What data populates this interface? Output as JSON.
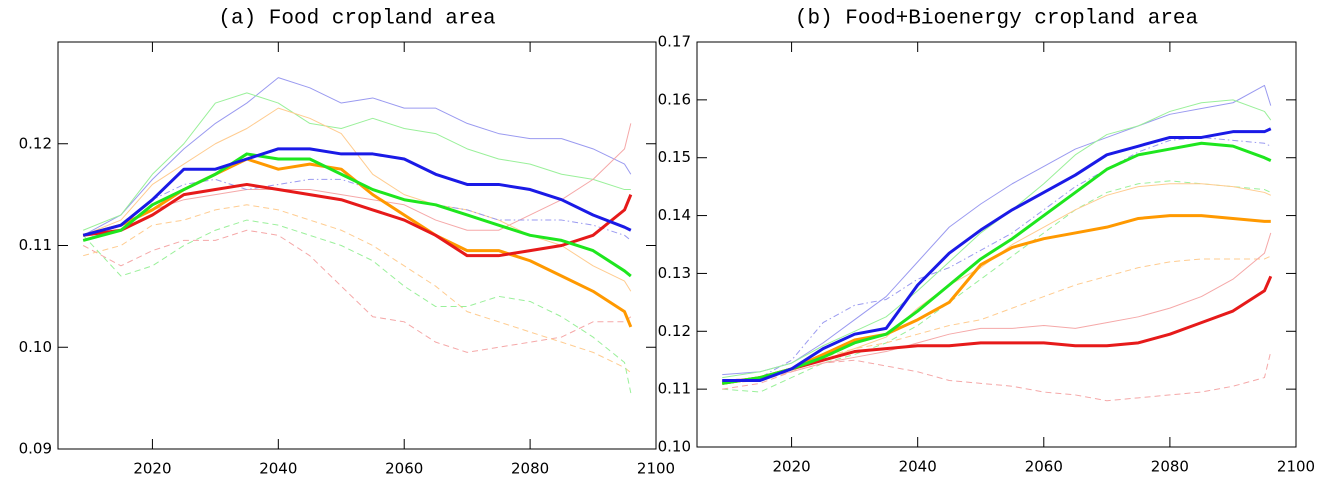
{
  "chart_data": [
    {
      "type": "line",
      "title": "(a) Food cropland area",
      "x": [
        2009,
        2015,
        2020,
        2025,
        2030,
        2035,
        2040,
        2045,
        2050,
        2055,
        2060,
        2065,
        2070,
        2075,
        2080,
        2085,
        2090,
        2095,
        2096
      ],
      "xlim": [
        2005,
        2100
      ],
      "xticks": [
        2020,
        2040,
        2060,
        2080,
        2100
      ],
      "ylim": [
        0.09,
        0.13
      ],
      "yticks": [
        0.09,
        {
          "value": 0.1,
          "label": "0.10"
        },
        0.11,
        0.12
      ],
      "series": [
        {
          "color": "#9a9af0",
          "dash": "solid",
          "linewidth": 1,
          "values": [
            0.111,
            0.113,
            0.1165,
            0.1195,
            0.122,
            0.124,
            0.1265,
            0.1255,
            0.124,
            0.1245,
            0.1235,
            0.1235,
            0.122,
            0.121,
            0.1205,
            0.1205,
            0.1195,
            0.118,
            0.117
          ]
        },
        {
          "color": "#9af09a",
          "dash": "solid",
          "linewidth": 1,
          "values": [
            0.1115,
            0.113,
            0.117,
            0.12,
            0.124,
            0.125,
            0.124,
            0.122,
            0.1215,
            0.1225,
            0.1215,
            0.121,
            0.1195,
            0.1185,
            0.118,
            0.117,
            0.1165,
            0.1155,
            0.1155
          ]
        },
        {
          "color": "#f5a8a8",
          "dash": "dashed",
          "linewidth": 1,
          "values": [
            0.11,
            0.108,
            0.1095,
            0.1105,
            0.1105,
            0.1115,
            0.111,
            0.109,
            0.106,
            0.103,
            0.1025,
            0.1005,
            0.0995,
            0.1,
            0.1005,
            0.101,
            0.1025,
            0.1025,
            0.103
          ]
        },
        {
          "color": "#ffcc90",
          "dash": "dashed",
          "linewidth": 1,
          "values": [
            0.109,
            0.11,
            0.112,
            0.1125,
            0.1135,
            0.114,
            0.1135,
            0.1125,
            0.1115,
            0.11,
            0.108,
            0.106,
            0.1035,
            0.1025,
            0.1015,
            0.1005,
            0.0995,
            0.098,
            0.0975
          ]
        },
        {
          "color": "#9af09a",
          "dash": "dashed",
          "linewidth": 1,
          "values": [
            0.111,
            0.107,
            0.108,
            0.11,
            0.1115,
            0.1125,
            0.112,
            0.111,
            0.11,
            0.1085,
            0.106,
            0.104,
            0.104,
            0.105,
            0.1045,
            0.103,
            0.101,
            0.0985,
            0.0955
          ]
        },
        {
          "color": "#f5a8a8",
          "dash": "solid",
          "linewidth": 1,
          "values": [
            0.111,
            0.112,
            0.1135,
            0.1145,
            0.115,
            0.1155,
            0.1155,
            0.1155,
            0.115,
            0.1145,
            0.114,
            0.1125,
            0.1115,
            0.1115,
            0.113,
            0.1145,
            0.1165,
            0.1195,
            0.122
          ]
        },
        {
          "color": "#ffcc90",
          "dash": "solid",
          "linewidth": 1,
          "values": [
            0.111,
            0.1125,
            0.116,
            0.118,
            0.12,
            0.1215,
            0.1235,
            0.1225,
            0.121,
            0.117,
            0.115,
            0.114,
            0.1135,
            0.1125,
            0.111,
            0.11,
            0.108,
            0.1065,
            0.1055
          ]
        },
        {
          "color": "#9a9af0",
          "dash": "dashdot",
          "linewidth": 1,
          "values": [
            0.1105,
            0.112,
            0.1145,
            0.116,
            0.1165,
            0.1155,
            0.116,
            0.1165,
            0.1165,
            0.1155,
            0.1145,
            0.114,
            0.1135,
            0.1125,
            0.1125,
            0.1125,
            0.112,
            0.111,
            0.1105
          ]
        },
        {
          "color": "#ff9900",
          "dash": "solid",
          "linewidth": 3,
          "values": [
            0.111,
            0.112,
            0.1135,
            0.1155,
            0.117,
            0.1185,
            0.1175,
            0.118,
            0.1175,
            0.115,
            0.113,
            0.111,
            0.1095,
            0.1095,
            0.1085,
            0.107,
            0.1055,
            0.1035,
            0.102
          ]
        },
        {
          "color": "#e61a1a",
          "dash": "solid",
          "linewidth": 3,
          "values": [
            0.111,
            0.1115,
            0.113,
            0.115,
            0.1155,
            0.116,
            0.1155,
            0.115,
            0.1145,
            0.1135,
            0.1125,
            0.111,
            0.109,
            0.109,
            0.1095,
            0.11,
            0.111,
            0.1135,
            0.115
          ]
        },
        {
          "color": "#1ee61e",
          "dash": "solid",
          "linewidth": 3,
          "values": [
            0.1105,
            0.1115,
            0.114,
            0.1155,
            0.117,
            0.119,
            0.1185,
            0.1185,
            0.117,
            0.1155,
            0.1145,
            0.114,
            0.113,
            0.112,
            0.111,
            0.1105,
            0.1095,
            0.1075,
            0.107
          ]
        },
        {
          "color": "#1a1ae6",
          "dash": "solid",
          "linewidth": 3,
          "values": [
            0.111,
            0.112,
            0.1145,
            0.1175,
            0.1175,
            0.1185,
            0.1195,
            0.1195,
            0.119,
            0.119,
            0.1185,
            0.117,
            0.116,
            0.116,
            0.1155,
            0.1145,
            0.113,
            0.1118,
            0.1115
          ]
        }
      ]
    },
    {
      "type": "line",
      "title": "(b) Food+Bioenergy cropland area",
      "x": [
        2009,
        2015,
        2020,
        2025,
        2030,
        2035,
        2040,
        2045,
        2050,
        2055,
        2060,
        2065,
        2070,
        2075,
        2080,
        2085,
        2090,
        2095,
        2096
      ],
      "xlim": [
        2005,
        2100
      ],
      "xticks": [
        2020,
        2040,
        2060,
        2080,
        2100
      ],
      "ylim": [
        0.1,
        0.17
      ],
      "yticks": [
        {
          "value": 0.1,
          "label": "0.10"
        },
        0.11,
        0.12,
        0.13,
        0.14,
        0.15,
        0.16,
        0.17
      ],
      "series": [
        {
          "color": "#9a9af0",
          "dash": "solid",
          "linewidth": 1,
          "values": [
            0.1125,
            0.113,
            0.1145,
            0.118,
            0.122,
            0.126,
            0.132,
            0.138,
            0.142,
            0.1455,
            0.1485,
            0.1515,
            0.1535,
            0.1555,
            0.1575,
            0.1585,
            0.1595,
            0.1625,
            0.159
          ]
        },
        {
          "color": "#9a9af0",
          "dash": "dashdot",
          "linewidth": 1,
          "values": [
            0.1115,
            0.112,
            0.115,
            0.1215,
            0.1245,
            0.1255,
            0.129,
            0.131,
            0.134,
            0.137,
            0.141,
            0.145,
            0.148,
            0.151,
            0.153,
            0.1535,
            0.153,
            0.1525,
            0.152
          ]
        },
        {
          "color": "#9af09a",
          "dash": "solid",
          "linewidth": 1,
          "values": [
            0.112,
            0.113,
            0.1145,
            0.1175,
            0.12,
            0.1225,
            0.127,
            0.132,
            0.137,
            0.141,
            0.1455,
            0.1505,
            0.154,
            0.1555,
            0.158,
            0.1595,
            0.16,
            0.158,
            0.1565
          ]
        },
        {
          "color": "#9af09a",
          "dash": "dashed",
          "linewidth": 1,
          "values": [
            0.11,
            0.1095,
            0.112,
            0.1145,
            0.116,
            0.118,
            0.121,
            0.125,
            0.129,
            0.133,
            0.137,
            0.141,
            0.144,
            0.1455,
            0.146,
            0.1455,
            0.145,
            0.1445,
            0.144
          ]
        },
        {
          "color": "#ffcc90",
          "dash": "solid",
          "linewidth": 1,
          "values": [
            0.1115,
            0.112,
            0.1135,
            0.115,
            0.117,
            0.119,
            0.124,
            0.128,
            0.131,
            0.135,
            0.138,
            0.141,
            0.1435,
            0.145,
            0.1455,
            0.1455,
            0.145,
            0.144,
            0.1435
          ]
        },
        {
          "color": "#ffcc90",
          "dash": "dashed",
          "linewidth": 1,
          "values": [
            0.111,
            0.1115,
            0.113,
            0.1155,
            0.117,
            0.118,
            0.1195,
            0.121,
            0.122,
            0.124,
            0.126,
            0.128,
            0.1295,
            0.131,
            0.132,
            0.1325,
            0.1325,
            0.1325,
            0.133
          ]
        },
        {
          "color": "#f5a8a8",
          "dash": "solid",
          "linewidth": 1,
          "values": [
            0.1115,
            0.112,
            0.113,
            0.1145,
            0.1155,
            0.1165,
            0.118,
            0.1195,
            0.1205,
            0.1205,
            0.121,
            0.1205,
            0.1215,
            0.1225,
            0.124,
            0.126,
            0.129,
            0.1335,
            0.137
          ]
        },
        {
          "color": "#f5a8a8",
          "dash": "dashed",
          "linewidth": 1,
          "values": [
            0.11,
            0.111,
            0.113,
            0.1145,
            0.115,
            0.114,
            0.113,
            0.1115,
            0.111,
            0.1105,
            0.1095,
            0.109,
            0.108,
            0.1085,
            0.109,
            0.1095,
            0.1105,
            0.112,
            0.1165
          ]
        },
        {
          "color": "#e61a1a",
          "dash": "solid",
          "linewidth": 3,
          "values": [
            0.111,
            0.112,
            0.1135,
            0.115,
            0.1165,
            0.117,
            0.1175,
            0.1175,
            0.118,
            0.118,
            0.118,
            0.1175,
            0.1175,
            0.118,
            0.1195,
            0.1215,
            0.1235,
            0.127,
            0.1295
          ]
        },
        {
          "color": "#ff9900",
          "dash": "solid",
          "linewidth": 3,
          "values": [
            0.111,
            0.112,
            0.1135,
            0.116,
            0.1185,
            0.1195,
            0.122,
            0.125,
            0.1315,
            0.1345,
            0.136,
            0.137,
            0.138,
            0.1395,
            0.14,
            0.14,
            0.1395,
            0.139,
            0.139
          ]
        },
        {
          "color": "#1ee61e",
          "dash": "solid",
          "linewidth": 3,
          "values": [
            0.111,
            0.112,
            0.1135,
            0.1155,
            0.118,
            0.1195,
            0.1235,
            0.128,
            0.1325,
            0.136,
            0.14,
            0.144,
            0.148,
            0.1505,
            0.1515,
            0.1525,
            0.152,
            0.15,
            0.1495
          ]
        },
        {
          "color": "#1a1ae6",
          "dash": "solid",
          "linewidth": 3,
          "values": [
            0.1115,
            0.1115,
            0.1135,
            0.117,
            0.1195,
            0.1205,
            0.128,
            0.1335,
            0.1375,
            0.141,
            0.144,
            0.147,
            0.1505,
            0.152,
            0.1535,
            0.1535,
            0.1545,
            0.1545,
            0.155
          ]
        }
      ]
    }
  ]
}
